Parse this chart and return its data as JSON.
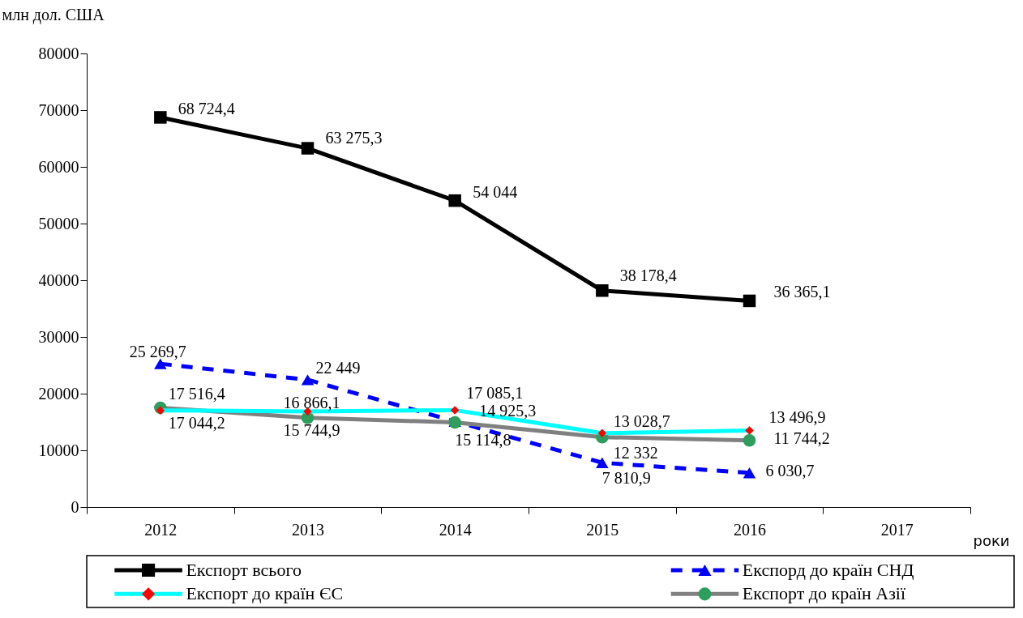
{
  "chart_data": {
    "type": "line",
    "ylabel": "млн дол. США",
    "xlabel": "роки",
    "categories": [
      "2012",
      "2013",
      "2014",
      "2015",
      "2016",
      "2017"
    ],
    "ylim": [
      0,
      80000
    ],
    "yticks": [
      0,
      10000,
      20000,
      30000,
      40000,
      50000,
      60000,
      70000,
      80000
    ],
    "grid": false,
    "legend": "bottom",
    "series": [
      {
        "name": "Експорт всього",
        "color": "#000000",
        "marker": "square",
        "line_style": "solid",
        "values": [
          68724.4,
          63275.3,
          54044,
          38178.4,
          36365.1,
          null
        ],
        "value_labels": [
          "68 724,4",
          "63 275,3",
          "54 044",
          "38 178,4",
          "36 365,1",
          null
        ]
      },
      {
        "name": "Експорд до країн СНД",
        "color": "#0000ff",
        "marker": "triangle",
        "line_style": "dashed",
        "values": [
          25269.7,
          22449,
          15114.8,
          7810.9,
          6030.7,
          null
        ],
        "value_labels": [
          "25 269,7",
          "22 449",
          "15 114,8",
          "7 810,9",
          "6 030,7",
          null
        ]
      },
      {
        "name": "Експорт до країн ЄС",
        "color": "#00ffff",
        "marker": "diamond",
        "line_style": "solid",
        "values": [
          17044.2,
          16866.1,
          17085.1,
          13028.7,
          13496.9,
          null
        ],
        "value_labels": [
          "17 044,2",
          "16 866,1",
          "17 085,1",
          "13 028,7",
          "13 496,9",
          null
        ]
      },
      {
        "name": "Експорт до країн Азії",
        "color": "#808080",
        "marker": "circle",
        "line_style": "solid",
        "values": [
          17516.4,
          15744.9,
          14925.3,
          12332,
          11744.2,
          null
        ],
        "value_labels": [
          "17 516,4",
          "15 744,9",
          "14 925,3",
          "12 332",
          "11 744,2",
          null
        ]
      }
    ]
  }
}
